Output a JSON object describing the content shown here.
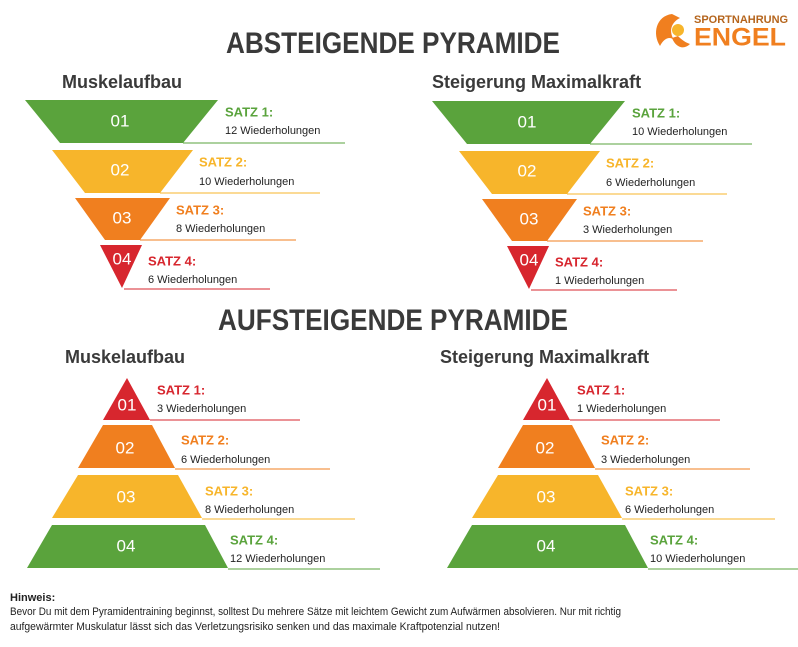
{
  "logo": {
    "top": "SPORTNAHRUNG",
    "name": "ENGEL"
  },
  "sections": [
    {
      "title": "ABSTEIGENDE PYRAMIDE",
      "pyramids": [
        {
          "title": "Muskelaufbau",
          "steps": [
            {
              "number": "01",
              "label": "SATZ 1:",
              "reps": "12 Wiederholungen",
              "color": "#5aa33c"
            },
            {
              "number": "02",
              "label": "SATZ 2:",
              "reps": "10 Wiederholungen",
              "color": "#f7b52b"
            },
            {
              "number": "03",
              "label": "SATZ 3:",
              "reps": "8 Wiederholungen",
              "color": "#f07f1f"
            },
            {
              "number": "04",
              "label": "SATZ 4:",
              "reps": "6 Wiederholungen",
              "color": "#d7262e"
            }
          ]
        },
        {
          "title": "Steigerung Maximalkraft",
          "steps": [
            {
              "number": "01",
              "label": "SATZ 1:",
              "reps": "10 Wiederholungen",
              "color": "#5aa33c"
            },
            {
              "number": "02",
              "label": "SATZ 2:",
              "reps": "6 Wiederholungen",
              "color": "#f7b52b"
            },
            {
              "number": "03",
              "label": "SATZ 3:",
              "reps": "3 Wiederholungen",
              "color": "#f07f1f"
            },
            {
              "number": "04",
              "label": "SATZ 4:",
              "reps": "1 Wiederholungen",
              "color": "#d7262e"
            }
          ]
        }
      ]
    },
    {
      "title": "AUFSTEIGENDE PYRAMIDE",
      "pyramids": [
        {
          "title": "Muskelaufbau",
          "steps": [
            {
              "number": "01",
              "label": "SATZ 1:",
              "reps": "3 Wiederholungen",
              "color": "#d7262e"
            },
            {
              "number": "02",
              "label": "SATZ 2:",
              "reps": "6 Wiederholungen",
              "color": "#f07f1f"
            },
            {
              "number": "03",
              "label": "SATZ 3:",
              "reps": "8 Wiederholungen",
              "color": "#f7b52b"
            },
            {
              "number": "04",
              "label": "SATZ 4:",
              "reps": "12 Wiederholungen",
              "color": "#5aa33c"
            }
          ]
        },
        {
          "title": "Steigerung Maximalkraft",
          "steps": [
            {
              "number": "01",
              "label": "SATZ 1:",
              "reps": "1 Wiederholungen",
              "color": "#d7262e"
            },
            {
              "number": "02",
              "label": "SATZ 2:",
              "reps": "3 Wiederholungen",
              "color": "#f07f1f"
            },
            {
              "number": "03",
              "label": "SATZ 3:",
              "reps": "6 Wiederholungen",
              "color": "#f7b52b"
            },
            {
              "number": "04",
              "label": "SATZ 4:",
              "reps": "10 Wiederholungen",
              "color": "#5aa33c"
            }
          ]
        }
      ]
    }
  ],
  "hint": {
    "title": "Hinweis:",
    "lines": [
      "Bevor Du mit dem Pyramidentraining beginnst, solltest Du mehrere Sätze mit leichtem Gewicht zum Aufwärmen absolvieren. Nur mit richtig",
      "aufgewärmter Muskulatur lässt sich das Verletzungsrisiko senken und das maximale Kraftpotenzial nutzen!"
    ]
  }
}
